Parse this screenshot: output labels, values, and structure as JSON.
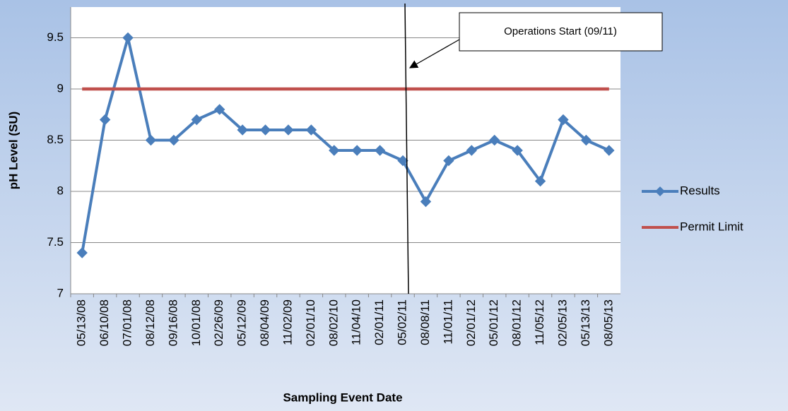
{
  "chart_data": {
    "type": "line",
    "x_label": "Sampling Event Date",
    "y_label": "pH Level (SU)",
    "annotation": "Operations Start (09/11)",
    "categories": [
      "05/13/08",
      "06/10/08",
      "07/01/08",
      "08/12/08",
      "09/16/08",
      "10/01/08",
      "02/26/09",
      "05/12/09",
      "08/04/09",
      "11/02/09",
      "02/01/10",
      "08/02/10",
      "11/04/10",
      "02/01/11",
      "05/02/11",
      "08/08/11",
      "11/01/11",
      "02/01/12",
      "05/01/12",
      "08/01/12",
      "11/05/12",
      "02/05/13",
      "05/13/13",
      "08/05/13"
    ],
    "series": [
      {
        "name": "Results",
        "color": "#4a7ebb",
        "marker": "diamond",
        "values": [
          7.4,
          8.7,
          9.5,
          8.5,
          8.5,
          8.7,
          8.8,
          8.6,
          8.6,
          8.6,
          8.6,
          8.4,
          8.4,
          8.4,
          8.3,
          7.9,
          8.3,
          8.4,
          8.5,
          8.4,
          8.1,
          8.7,
          8.5,
          8.4
        ]
      },
      {
        "name": "Permit Limit",
        "color": "#c0504d",
        "values": [
          9,
          9,
          9,
          9,
          9,
          9,
          9,
          9,
          9,
          9,
          9,
          9,
          9,
          9,
          9,
          9,
          9,
          9,
          9,
          9,
          9,
          9,
          9,
          9
        ]
      }
    ],
    "ylim": [
      7,
      9.8
    ],
    "yticks": [
      7,
      7.5,
      8,
      8.5,
      9,
      9.5
    ],
    "grid": true,
    "legend": "right"
  }
}
